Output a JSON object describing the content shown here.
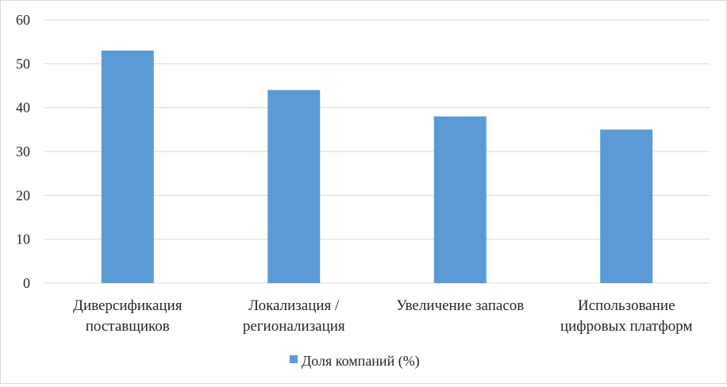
{
  "chart_data": {
    "type": "bar",
    "categories": [
      [
        "Диверсификация",
        "поставщиков"
      ],
      [
        "Локализация /",
        "регионализация"
      ],
      [
        "Увеличение запасов"
      ],
      [
        "Использование",
        "цифровых платформ"
      ]
    ],
    "series": [
      {
        "name": "Доля компаний (%)",
        "values": [
          53,
          44,
          38,
          35
        ],
        "color": "#5b9bd5"
      }
    ],
    "y_ticks": [
      "0",
      "10",
      "20",
      "30",
      "40",
      "50",
      "60"
    ],
    "ylim": [
      0,
      60
    ],
    "grid": true,
    "gridline_color": "#d9d9d9",
    "legend": "bottom"
  }
}
